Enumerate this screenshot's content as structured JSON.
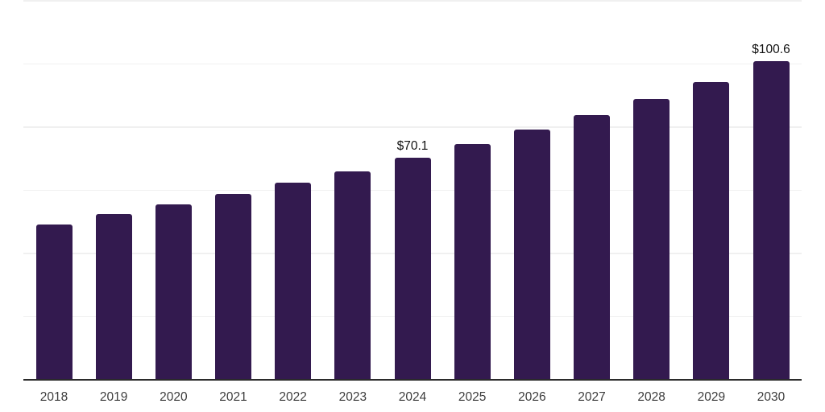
{
  "chart_data": {
    "type": "bar",
    "title": "",
    "xlabel": "",
    "ylabel": "",
    "categories": [
      "2018",
      "2019",
      "2020",
      "2021",
      "2022",
      "2023",
      "2024",
      "2025",
      "2026",
      "2027",
      "2028",
      "2029",
      "2030"
    ],
    "values": [
      48.9,
      52.2,
      55.4,
      58.6,
      62.1,
      65.8,
      70.1,
      74.4,
      79.0,
      83.6,
      88.6,
      94.0,
      100.6
    ],
    "data_labels": [
      null,
      null,
      null,
      null,
      null,
      null,
      "$70.1",
      null,
      null,
      null,
      null,
      null,
      "$100.6"
    ],
    "ylim": [
      0,
      120
    ],
    "gridline_step": 20,
    "grid": "horizontal-only",
    "y_axis_tick_labels": "none",
    "legend": "none",
    "colors": {
      "bar": "#331a4f",
      "axis_line": "#2b2b2b",
      "gridline": "#f0f0f0",
      "tick_label": "#3d3d3d",
      "data_label": "#111111",
      "background": "#ffffff"
    }
  }
}
